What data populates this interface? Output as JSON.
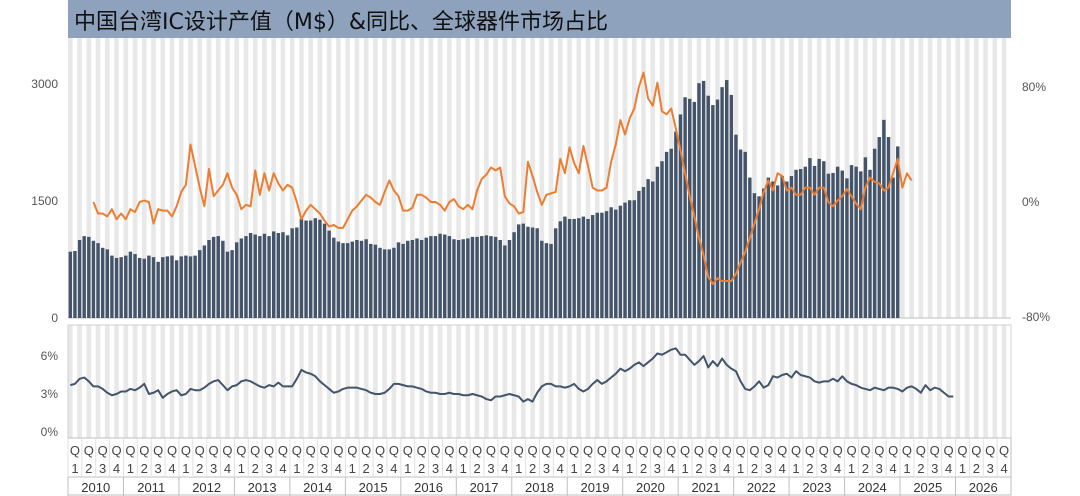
{
  "chart_data": [
    {
      "type": "bar+line",
      "title": "中国台湾IC设计产值（M$）&同比、全球器件市场占比",
      "left_axis": {
        "ticks": [
          "0",
          "1500",
          "3000"
        ],
        "ylim": [
          0,
          3000
        ]
      },
      "right_axis": {
        "ticks": [
          "-80%",
          "0%",
          "80%"
        ],
        "ylim": [
          -80,
          80
        ]
      },
      "x_start": "2010-01",
      "series": [
        {
          "name": "产值",
          "kind": "bar",
          "color": "#44546a",
          "values": [
            850,
            860,
            1000,
            1050,
            1040,
            990,
            960,
            900,
            880,
            800,
            770,
            780,
            800,
            850,
            820,
            770,
            760,
            800,
            780,
            720,
            780,
            790,
            800,
            740,
            790,
            800,
            790,
            800,
            870,
            930,
            1000,
            1040,
            1050,
            990,
            850,
            870,
            970,
            1020,
            1050,
            1090,
            1070,
            1050,
            1080,
            1050,
            1110,
            1090,
            1100,
            1060,
            1150,
            1160,
            1270,
            1250,
            1250,
            1280,
            1260,
            1210,
            1120,
            1030,
            980,
            960,
            960,
            980,
            1000,
            990,
            1010,
            950,
            940,
            900,
            880,
            880,
            900,
            970,
            950,
            990,
            1000,
            1020,
            1000,
            1030,
            1050,
            1050,
            1080,
            1070,
            1050,
            1010,
            1000,
            1010,
            1020,
            1040,
            1040,
            1050,
            1060,
            1050,
            1040,
            1000,
            930,
            1000,
            1100,
            1200,
            1210,
            1170,
            1160,
            1150,
            990,
            960,
            950,
            1150,
            1240,
            1300,
            1270,
            1270,
            1280,
            1300,
            1270,
            1320,
            1350,
            1350,
            1370,
            1420,
            1390,
            1440,
            1480,
            1510,
            1510,
            1630,
            1680,
            1780,
            1750,
            1940,
            2010,
            2130,
            2170,
            2390,
            2610,
            2830,
            2810,
            2770,
            3010,
            3040,
            2850,
            2730,
            2800,
            2960,
            3050,
            2860,
            2350,
            2160,
            2130,
            1800,
            1600,
            1560,
            1660,
            1800,
            1750,
            1700,
            1820,
            1750,
            1820,
            1900,
            1910,
            1940,
            2050,
            1950,
            2040,
            2010,
            1850,
            1860,
            1940,
            1890,
            1790,
            1960,
            1940,
            1880,
            2060,
            1900,
            2170,
            2320,
            2540,
            2320,
            1800,
            2200
          ]
        },
        {
          "name": "同比",
          "kind": "line",
          "axis": "right",
          "color": "#ed7d31",
          "start_index": 5,
          "values": [
            0,
            -8,
            -8,
            -10,
            -5,
            -12,
            -8,
            -12,
            -5,
            -7,
            0,
            1,
            0,
            -15,
            -5,
            -6,
            -6,
            -10,
            -3,
            7,
            12,
            40,
            25,
            10,
            -3,
            23,
            4,
            8,
            12,
            20,
            10,
            5,
            -5,
            -2,
            -3,
            22,
            5,
            20,
            8,
            20,
            13,
            8,
            12,
            10,
            0,
            -12,
            -6,
            -2,
            -5,
            -8,
            -13,
            -17,
            -16,
            -18,
            -18,
            -12,
            -6,
            -3,
            1,
            5,
            3,
            0,
            -2,
            7,
            15,
            8,
            4,
            -6,
            -6,
            -4,
            5,
            5,
            3,
            0,
            0,
            -2,
            -6,
            0,
            2,
            -3,
            -5,
            -2,
            -5,
            8,
            16,
            19,
            24,
            22,
            24,
            4,
            -1,
            -3,
            -8,
            -7,
            28,
            18,
            7,
            -2,
            5,
            6,
            7,
            30,
            20,
            38,
            27,
            20,
            39,
            25,
            10,
            8,
            8,
            10,
            28,
            40,
            57,
            47,
            58,
            65,
            80,
            90,
            72,
            67,
            83,
            63,
            61,
            65,
            51,
            36,
            20,
            4,
            -10,
            -25,
            -37,
            -52,
            -57,
            -53,
            -55,
            -55,
            -55,
            -50,
            -42,
            -35,
            -25,
            -15,
            -5,
            7,
            15,
            8,
            20,
            18,
            8,
            10,
            5,
            5,
            10,
            10,
            5,
            10,
            10,
            0,
            -3,
            1,
            4,
            9,
            4,
            -1,
            -5,
            10,
            17,
            14,
            13,
            8,
            10,
            20,
            30,
            10,
            20,
            15
          ]
        }
      ]
    },
    {
      "type": "line",
      "title": "",
      "y_axis": {
        "ticks": [
          "0%",
          "3%",
          "6%"
        ],
        "ylim": [
          0,
          6
        ]
      },
      "x_start": "2010-01",
      "series": [
        {
          "name": "全球器件市场占比",
          "color": "#44546a",
          "values": [
            3.7,
            3.8,
            4.2,
            4.3,
            4.0,
            3.6,
            3.6,
            3.4,
            3.1,
            2.9,
            3.0,
            3.2,
            3.2,
            3.4,
            3.3,
            3.5,
            3.8,
            3.0,
            3.1,
            3.3,
            2.7,
            3.0,
            3.2,
            3.3,
            2.9,
            3.0,
            3.4,
            3.3,
            3.3,
            3.5,
            3.8,
            4.0,
            4.1,
            3.7,
            3.3,
            3.6,
            3.7,
            4.0,
            4.1,
            4.0,
            3.8,
            3.6,
            3.5,
            3.7,
            3.6,
            3.9,
            3.6,
            3.6,
            3.6,
            4.2,
            4.9,
            4.7,
            4.6,
            4.4,
            4.0,
            3.7,
            3.4,
            3.1,
            3.2,
            3.4,
            3.5,
            3.5,
            3.5,
            3.4,
            3.3,
            3.1,
            3.0,
            3.0,
            3.1,
            3.4,
            3.8,
            3.8,
            3.7,
            3.6,
            3.6,
            3.5,
            3.4,
            3.2,
            3.1,
            3.1,
            3.0,
            3.0,
            3.1,
            3.0,
            3.0,
            2.9,
            2.9,
            3.0,
            2.9,
            2.8,
            2.6,
            2.5,
            2.8,
            2.8,
            2.9,
            3.0,
            2.9,
            2.8,
            2.4,
            2.6,
            2.4,
            3.1,
            3.6,
            3.8,
            3.8,
            3.6,
            3.6,
            3.5,
            3.6,
            3.8,
            3.4,
            3.2,
            3.4,
            3.8,
            4.1,
            3.8,
            4.0,
            4.3,
            4.6,
            5.0,
            4.8,
            5.0,
            5.3,
            5.5,
            5.2,
            5.5,
            5.8,
            6.2,
            6.1,
            6.3,
            6.5,
            6.6,
            6.1,
            6.1,
            5.7,
            5.3,
            5.6,
            6.0,
            5.1,
            5.6,
            5.2,
            5.8,
            5.3,
            5.0,
            4.8,
            4.0,
            3.4,
            3.3,
            3.6,
            4.0,
            3.5,
            3.7,
            4.4,
            4.3,
            4.5,
            4.6,
            4.3,
            4.8,
            4.5,
            4.4,
            4.3,
            4.0,
            3.9,
            4.0,
            4.0,
            4.2,
            4.0,
            4.4,
            4.0,
            3.8,
            3.7,
            3.5,
            3.4,
            3.3,
            3.5,
            3.4,
            3.3,
            3.5,
            3.5,
            3.4,
            3.2,
            3.5,
            3.6,
            3.4,
            3.1,
            3.7,
            3.3,
            3.5,
            3.4,
            3.1,
            2.8,
            2.8
          ]
        }
      ]
    }
  ],
  "x_axis": {
    "quarter_labels": [
      "Q1",
      "Q2",
      "Q3",
      "Q4"
    ],
    "years": [
      "2010",
      "2011",
      "2012",
      "2013",
      "2014",
      "2015",
      "2016",
      "2017",
      "2018",
      "2019",
      "2020",
      "2021",
      "2022",
      "2023",
      "2024",
      "2025",
      "2026"
    ]
  },
  "colors": {
    "bar": "#44546a",
    "yoy": "#ed7d31",
    "share": "#44546a",
    "title_bg": "#8ea2bd",
    "band": "#e8e8e8"
  }
}
